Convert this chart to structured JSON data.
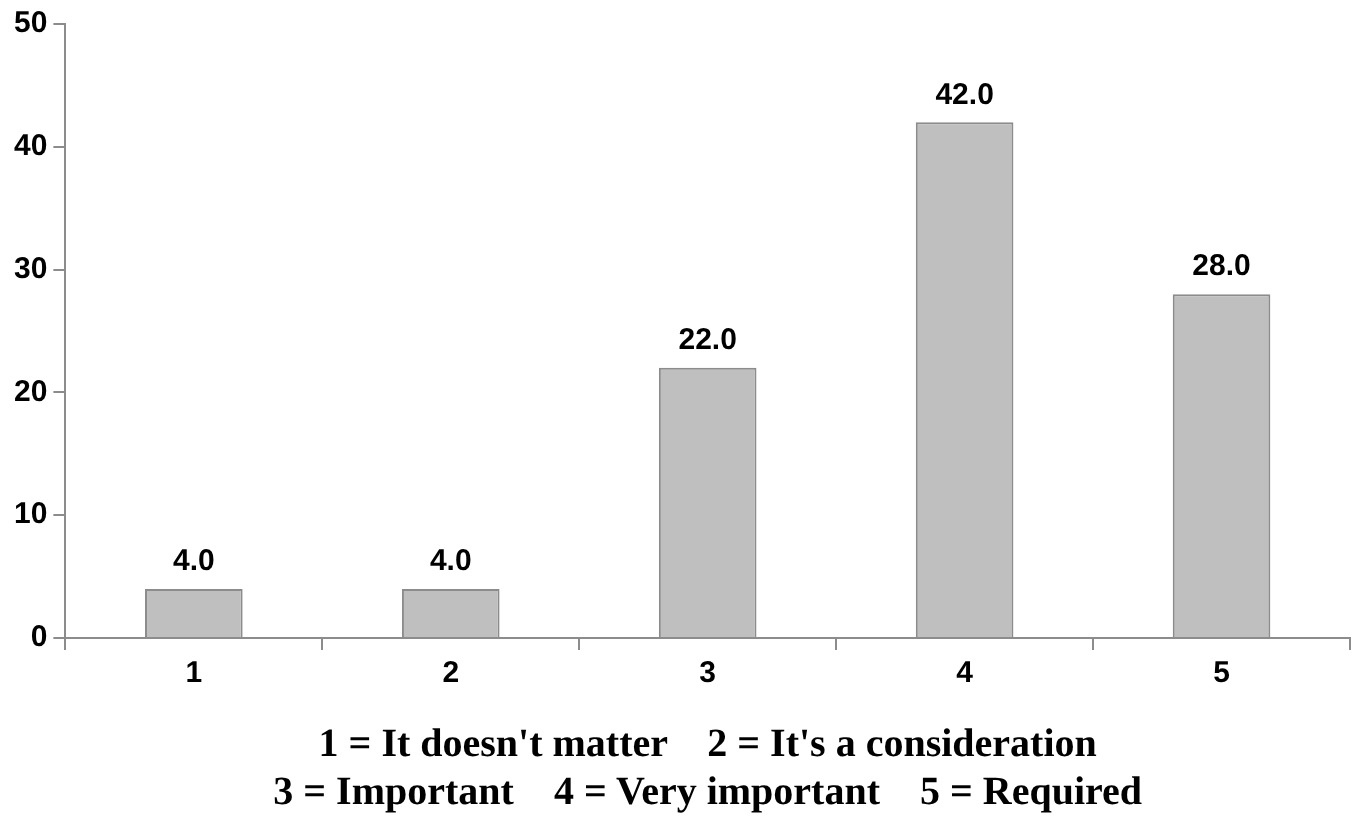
{
  "chart_data": {
    "type": "bar",
    "categories": [
      "1",
      "2",
      "3",
      "4",
      "5"
    ],
    "values": [
      4,
      4,
      22,
      42,
      28
    ],
    "color": "#bfbfbf",
    "value_labels": [
      "4.0",
      "4.0",
      "22.0",
      "42.0",
      "28.0"
    ],
    "xlabel": "1 = It doesn't matter    2 = It's a consideration\n3 = Important    4 = Very important    5 = Required",
    "ylim": [
      0,
      50
    ],
    "yticks": [
      0,
      10,
      20,
      30,
      40,
      50
    ],
    "grid": false,
    "legend": false
  }
}
